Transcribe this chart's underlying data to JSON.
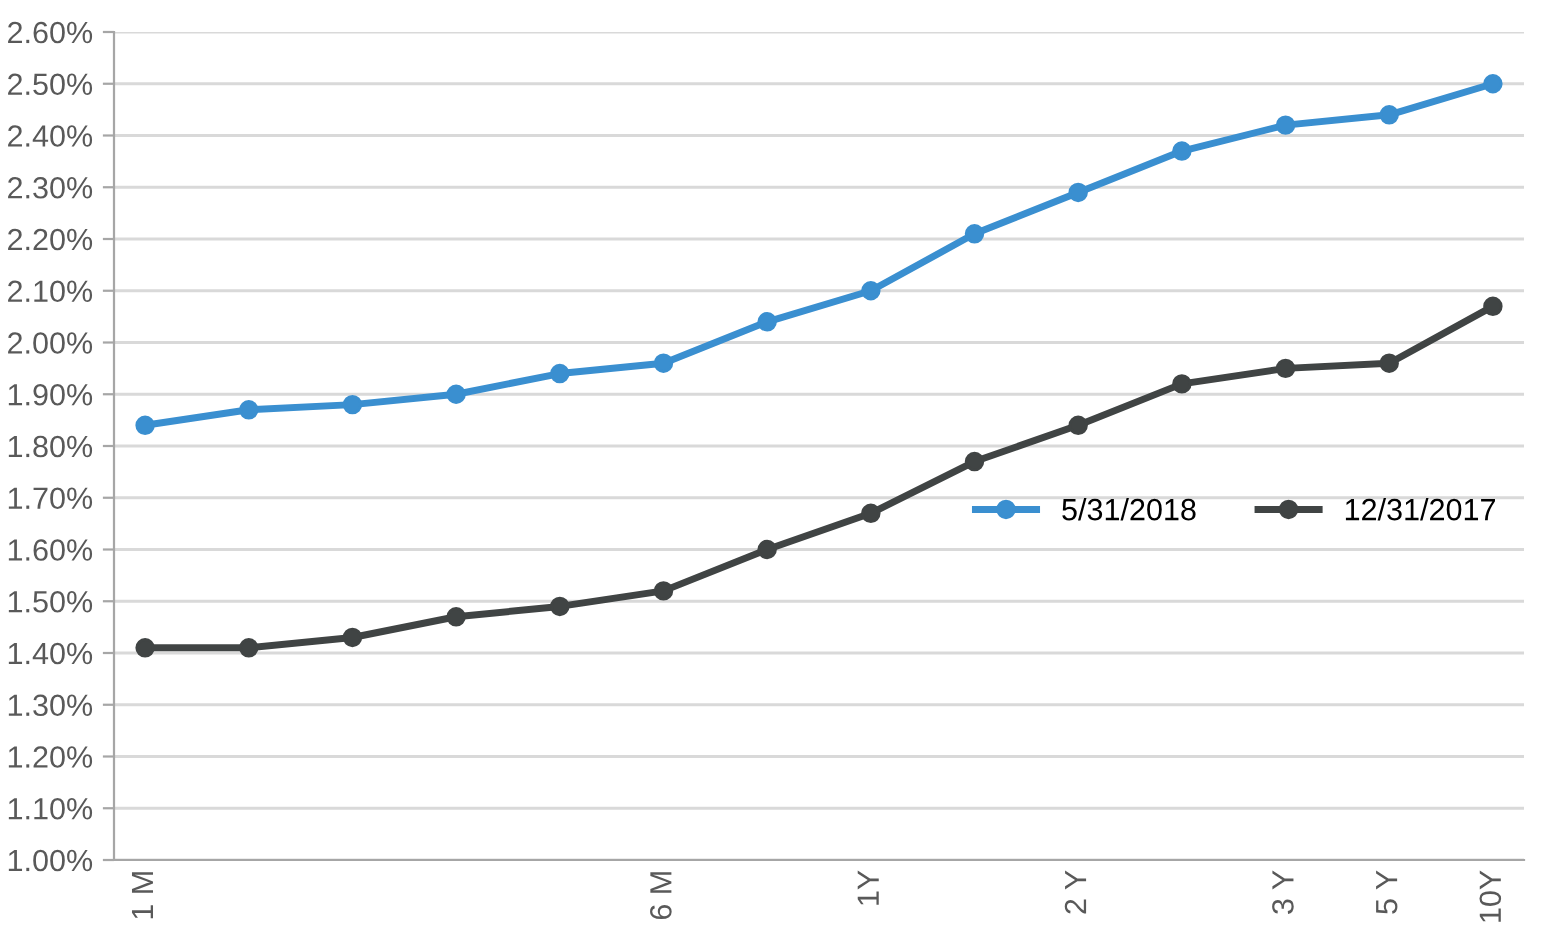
{
  "chart_data": {
    "type": "line",
    "categories": [
      "1 M",
      null,
      null,
      null,
      null,
      "6 M",
      null,
      "1Y",
      null,
      "2 Y",
      null,
      "3 Y",
      "5 Y",
      "10Y"
    ],
    "series": [
      {
        "name": "5/31/2018",
        "color": "#3a8fd0",
        "values": [
          1.84,
          1.87,
          1.88,
          1.9,
          1.94,
          1.96,
          2.04,
          2.1,
          2.21,
          2.29,
          2.37,
          2.42,
          2.44,
          2.5
        ]
      },
      {
        "name": "12/31/2017",
        "color": "#404444",
        "values": [
          1.41,
          1.41,
          1.43,
          1.47,
          1.49,
          1.52,
          1.6,
          1.67,
          1.77,
          1.84,
          1.92,
          1.95,
          1.96,
          2.07
        ]
      }
    ],
    "ylim": [
      1.0,
      2.6
    ],
    "yticks": [
      {
        "value": 1.0,
        "label": "1.00%"
      },
      {
        "value": 1.1,
        "label": "1.10%"
      },
      {
        "value": 1.2,
        "label": "1.20%"
      },
      {
        "value": 1.3,
        "label": "1.30%"
      },
      {
        "value": 1.4,
        "label": "1.40%"
      },
      {
        "value": 1.5,
        "label": "1.50%"
      },
      {
        "value": 1.6,
        "label": "1.60%"
      },
      {
        "value": 1.7,
        "label": "1.70%"
      },
      {
        "value": 1.8,
        "label": "1.80%"
      },
      {
        "value": 1.9,
        "label": "1.90%"
      },
      {
        "value": 2.0,
        "label": "2.00%"
      },
      {
        "value": 2.1,
        "label": "2.10%"
      },
      {
        "value": 2.2,
        "label": "2.20%"
      },
      {
        "value": 2.3,
        "label": "2.30%"
      },
      {
        "value": 2.4,
        "label": "2.40%"
      },
      {
        "value": 2.5,
        "label": "2.50%"
      },
      {
        "value": 2.6,
        "label": "2.60%"
      }
    ],
    "grid": "y",
    "legend": "right",
    "marker": "circle",
    "line_style": "solid"
  }
}
